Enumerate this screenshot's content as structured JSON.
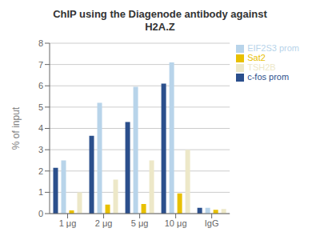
{
  "chart_data": {
    "type": "bar",
    "title": "ChIP using the Diagenode antibody against\nH2A.Z",
    "ylabel": "% of input",
    "categories": [
      "1 μg",
      "2 μg",
      "5 μg",
      "10 μg",
      "IgG"
    ],
    "series": [
      {
        "name": "c-fos prom",
        "color": "#2B4F8C",
        "values": [
          2.15,
          3.65,
          4.3,
          6.1,
          0.27
        ]
      },
      {
        "name": "EIF2S3 prom",
        "color": "#B8D4EA",
        "values": [
          2.5,
          5.2,
          5.95,
          7.1,
          0.27
        ]
      },
      {
        "name": "Sat2",
        "color": "#E8C000",
        "values": [
          0.15,
          0.42,
          0.45,
          0.95,
          0.18
        ]
      },
      {
        "name": "TSH2B",
        "color": "#EDE8C8",
        "values": [
          1.0,
          1.6,
          2.5,
          3.0,
          0.22
        ]
      }
    ],
    "ylim": [
      0,
      8
    ],
    "yticks": [
      0,
      1,
      2,
      3,
      4,
      5,
      6,
      7,
      8
    ],
    "grid": true,
    "legend": "upper right"
  }
}
